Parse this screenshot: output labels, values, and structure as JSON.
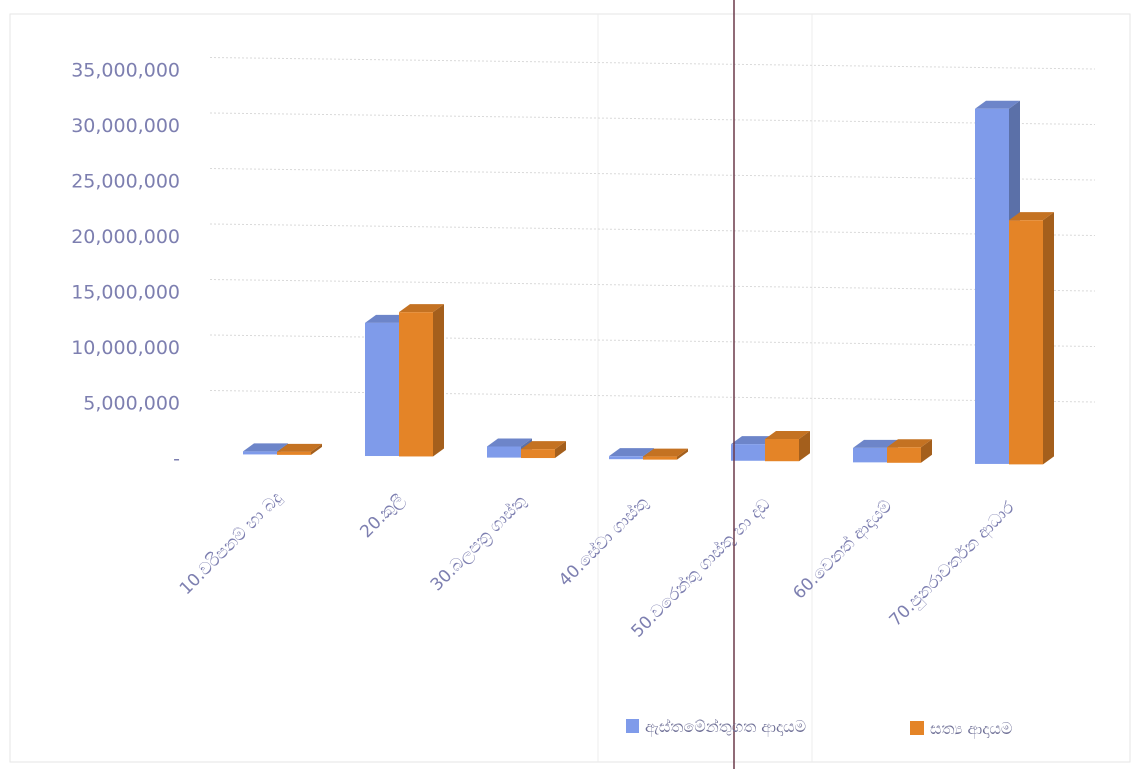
{
  "colors": {
    "series_blue": "#7f9bea",
    "series_orange": "#e48427",
    "axis_text": "#7d7fb0"
  },
  "chart_data": {
    "type": "bar",
    "style": "3d-clustered-column",
    "categories": [
      "10.වරිපනම් හා බදු",
      "20.කුලී",
      "30.බලපත්‍ර ගාස්තු",
      "40.සේවා ගාස්තු",
      "50.වරෙන්තු ගාස්තු හා දඩ",
      "60.වෙනත් ආදායම්",
      "70.පුනරාවර්තන ආධාර"
    ],
    "series": [
      {
        "name": "ඇස්තමේන්තුගත ආදායම",
        "color": "#7f9bea",
        "values": [
          200000,
          12000000,
          1000000,
          150000,
          1500000,
          1300000,
          32000000
        ]
      },
      {
        "name": "සත්‍ය ආදායම",
        "color": "#e48427",
        "values": [
          250000,
          13000000,
          800000,
          100000,
          2000000,
          1400000,
          22000000
        ]
      }
    ],
    "yticks": [
      "-",
      "5,000,000",
      "10,000,000",
      "15,000,000",
      "20,000,000",
      "25,000,000",
      "30,000,000",
      "35,000,000"
    ],
    "ylim": [
      0,
      35000000
    ],
    "grid": true,
    "legend_position": "bottom-right",
    "title": "",
    "xlabel": "",
    "ylabel": ""
  }
}
